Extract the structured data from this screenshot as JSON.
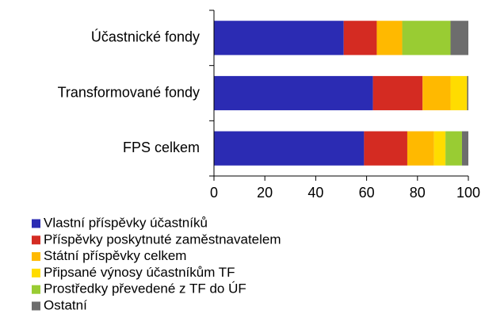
{
  "chart_data": {
    "type": "stacked_barh",
    "categories": [
      "Účastnické fondy",
      "Transformované fondy",
      "FPS celkem"
    ],
    "series": [
      {
        "name": "Vlastní příspěvky účastníků",
        "color": "#2b2bb3",
        "values": [
          51,
          62.5,
          59
        ]
      },
      {
        "name": "Příspěvky poskytnuté zaměstnavatelem",
        "color": "#d42b22",
        "values": [
          13,
          19.5,
          17
        ]
      },
      {
        "name": "Státní příspěvky celkem",
        "color": "#ffb900",
        "values": [
          10,
          11,
          10.5
        ]
      },
      {
        "name": "Připsané výnosy účastníkům TF",
        "color": "#ffdc00",
        "values": [
          0,
          6.5,
          4.5
        ]
      },
      {
        "name": "Prostředky převedené z TF do ÚF",
        "color": "#99cc33",
        "values": [
          19,
          0,
          6.5
        ]
      },
      {
        "name": "Ostatní",
        "color": "#6d6d6d",
        "values": [
          7,
          0.5,
          2.5
        ]
      }
    ],
    "xlim": [
      0,
      100
    ],
    "xticks": [
      0,
      20,
      40,
      60,
      80,
      100
    ],
    "legend": "bottom"
  }
}
